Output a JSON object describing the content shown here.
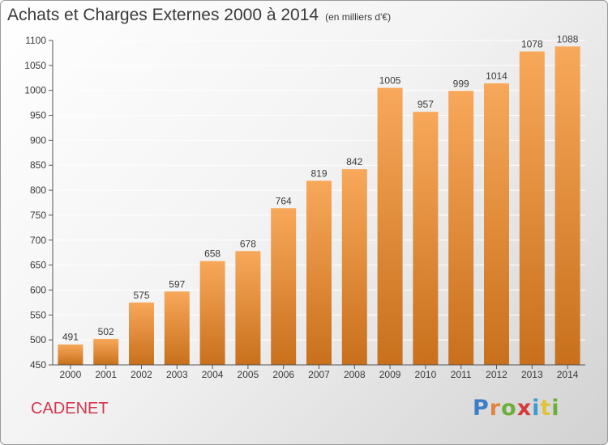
{
  "header": {
    "title": "Achats et Charges Externes 2000 à 2014",
    "unit": "(en milliers d'€)"
  },
  "footer": {
    "town": "CADENET",
    "brand_letters": [
      "P",
      "r",
      "o",
      "x",
      "i",
      "t",
      "i"
    ]
  },
  "colors": {
    "bar_light": "#f8a85a",
    "bar_dark": "#c8701c",
    "grid": "#ffffff",
    "text": "#3a3a3a",
    "town": "#d2374f",
    "brand": [
      "#3d7ec9",
      "#e2843c",
      "#6cae3a",
      "#d43a3a",
      "#3d9ad4",
      "#e2c23c",
      "#6cae3a"
    ]
  },
  "chart_data": {
    "type": "bar",
    "title": "Achats et Charges Externes 2000 à 2014",
    "subtitle": "(en milliers d'€)",
    "categories": [
      "2000",
      "2001",
      "2002",
      "2003",
      "2004",
      "2005",
      "2006",
      "2007",
      "2008",
      "2009",
      "2010",
      "2011",
      "2012",
      "2013",
      "2014"
    ],
    "values": [
      491,
      502,
      575,
      597,
      658,
      678,
      764,
      819,
      842,
      1005,
      957,
      999,
      1014,
      1078,
      1088
    ],
    "ylim": [
      450,
      1100
    ],
    "yticks": [
      450,
      500,
      550,
      600,
      650,
      700,
      750,
      800,
      850,
      900,
      950,
      1000,
      1050,
      1100
    ],
    "grid": true,
    "legend": "none"
  }
}
